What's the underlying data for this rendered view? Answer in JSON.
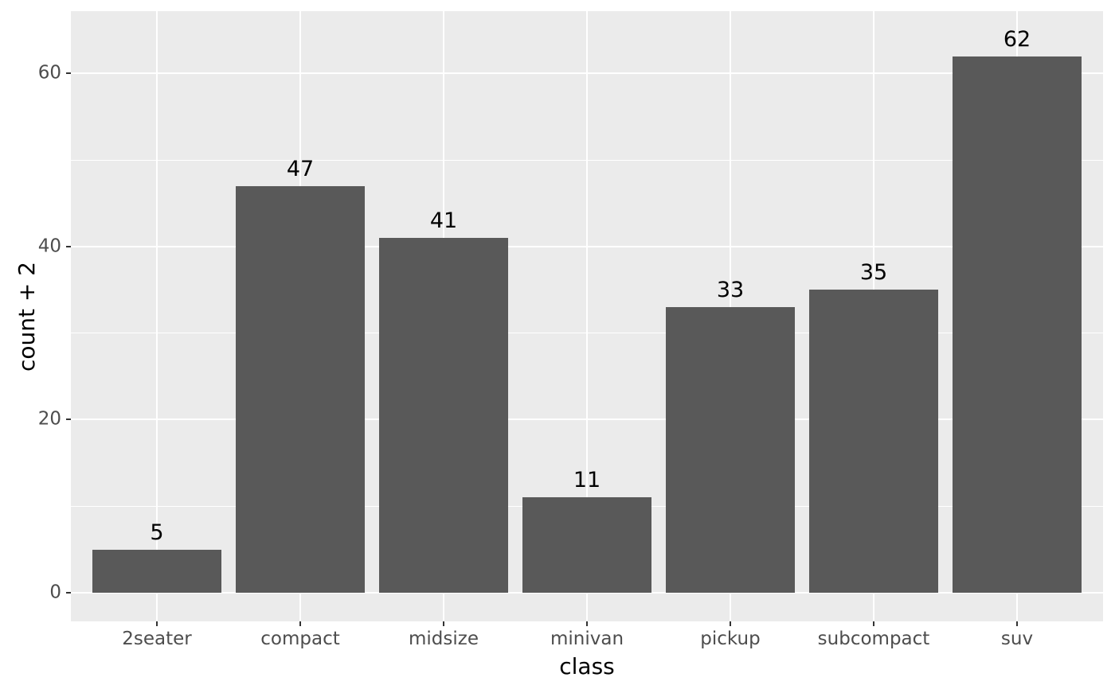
{
  "chart_data": {
    "type": "bar",
    "title": "",
    "xlabel": "class",
    "ylabel": "count + 2",
    "categories": [
      "2seater",
      "compact",
      "midsize",
      "minivan",
      "pickup",
      "subcompact",
      "suv"
    ],
    "values": [
      5,
      47,
      41,
      11,
      33,
      35,
      62
    ],
    "bar_labels": [
      "5",
      "47",
      "41",
      "11",
      "33",
      "35",
      "62"
    ],
    "y_ticks": [
      0,
      20,
      40,
      60
    ],
    "y_tick_labels": [
      "0",
      "20",
      "40",
      "60"
    ],
    "y_minor_ticks": [
      10,
      30,
      50
    ],
    "ylim": [
      -3.31,
      67.21
    ],
    "xlim": [
      0.4,
      7.6
    ],
    "bar_width_units": 0.9,
    "grid": true,
    "legend": false,
    "colors": {
      "bar": "#595959",
      "panel_background": "#EBEBEB",
      "grid_major": "#FFFFFF",
      "grid_minor": "#FFFFFF",
      "tick_text": "#4D4D4D",
      "tick_mark": "#333333",
      "axis_title": "#000000",
      "bar_label": "#000000",
      "figure_background": "#FFFFFF"
    }
  }
}
